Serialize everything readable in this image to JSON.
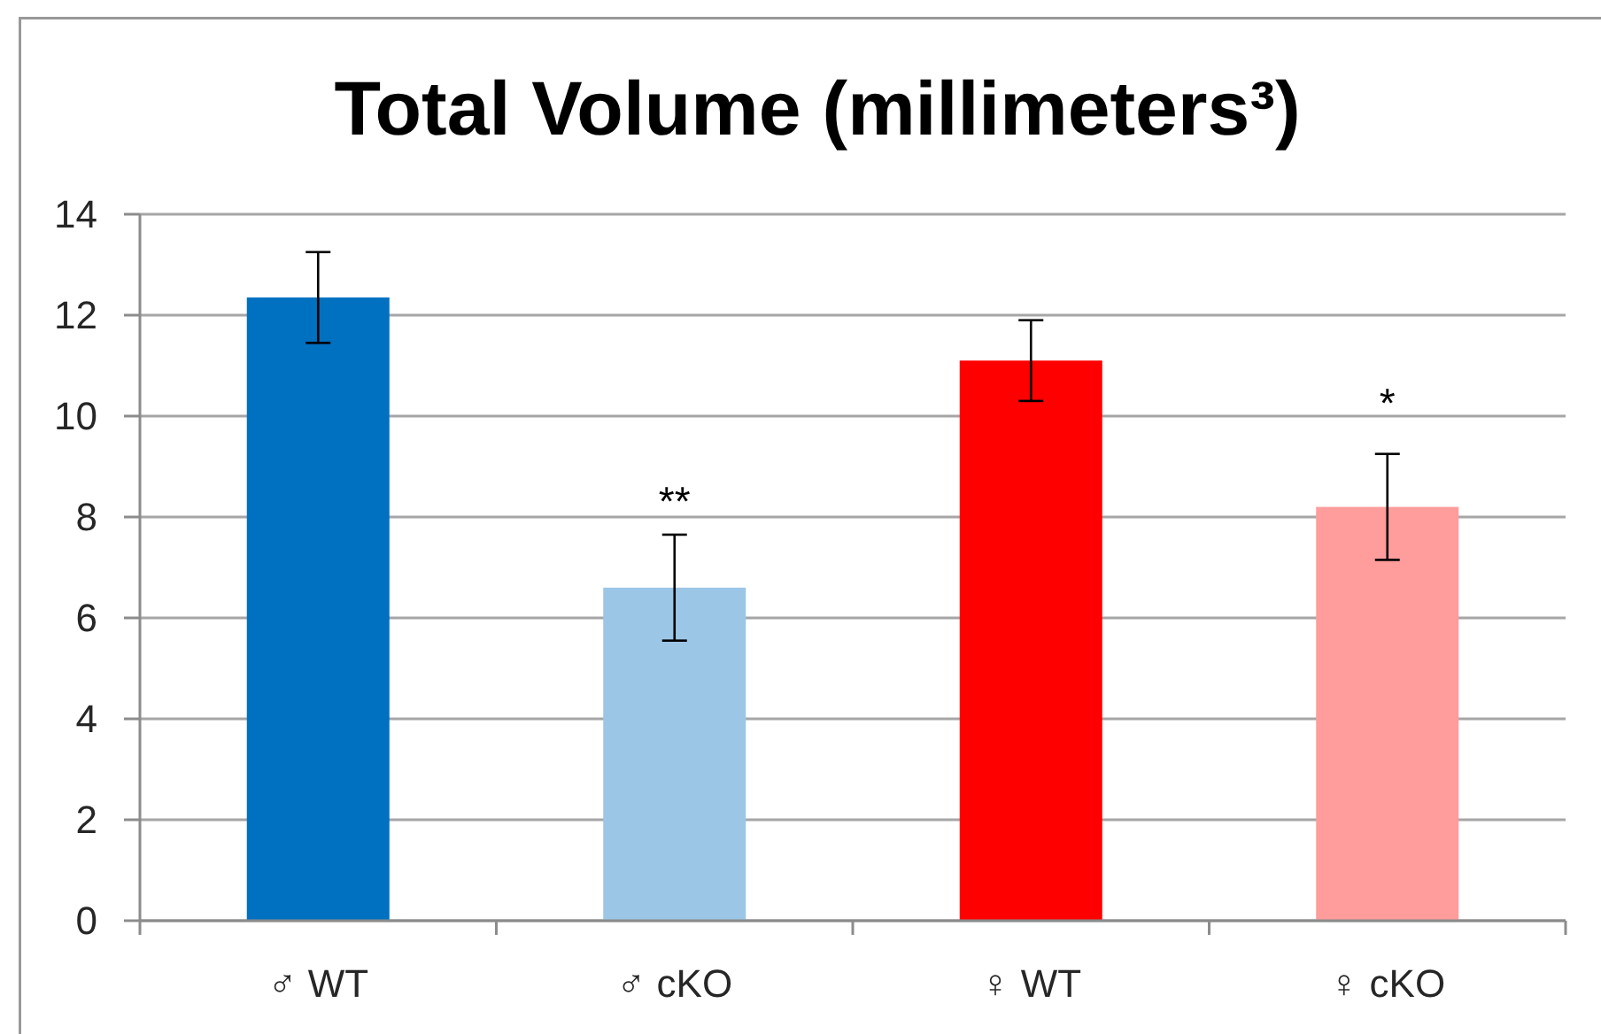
{
  "chart_data": {
    "type": "bar",
    "title": "Total Volume (millimeters³)",
    "categories": [
      "♂ WT",
      "♂ cKO",
      "♀ WT",
      "♀ cKO"
    ],
    "values": [
      12.35,
      6.6,
      11.1,
      8.2
    ],
    "errors": [
      0.9,
      1.05,
      0.8,
      1.05
    ],
    "colors": [
      "#0070c0",
      "#9cc6e6",
      "#ff0000",
      "#ff9c9c"
    ],
    "ylim": [
      0,
      14
    ],
    "yticks": [
      0,
      2,
      4,
      6,
      8,
      10,
      12,
      14
    ],
    "grid": "y",
    "annotations": [
      "**",
      "*"
    ]
  }
}
